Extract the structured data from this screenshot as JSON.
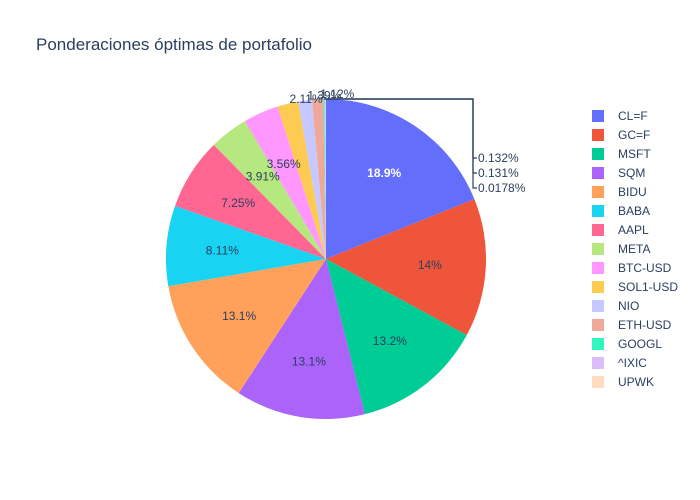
{
  "chart_data": {
    "type": "pie",
    "title": "Ponderaciones óptimas de portafolio",
    "direction": "clockwise",
    "start_angle_deg": 90,
    "legend_position": "right",
    "slices": [
      {
        "label": "CL=F",
        "value": 18.9,
        "text": "18.9%",
        "color": "#636efa"
      },
      {
        "label": "GC=F",
        "value": 14.0,
        "text": "14%",
        "color": "#EF553B"
      },
      {
        "label": "MSFT",
        "value": 13.2,
        "text": "13.2%",
        "color": "#00cc96"
      },
      {
        "label": "SQM",
        "value": 13.1,
        "text": "13.1%",
        "color": "#ab63fa"
      },
      {
        "label": "BIDU",
        "value": 13.1,
        "text": "13.1%",
        "color": "#FFA15A"
      },
      {
        "label": "BABA",
        "value": 8.11,
        "text": "8.11%",
        "color": "#19d3f3"
      },
      {
        "label": "AAPL",
        "value": 7.25,
        "text": "7.25%",
        "color": "#FF6692"
      },
      {
        "label": "META",
        "value": 3.91,
        "text": "3.91%",
        "color": "#B6E880"
      },
      {
        "label": "BTC-USD",
        "value": 3.56,
        "text": "3.56%",
        "color": "#FF97FF"
      },
      {
        "label": "SOL1-USD",
        "value": 2.11,
        "text": "2.11%",
        "color": "#FECB52"
      },
      {
        "label": "NIO",
        "value": 1.39,
        "text": "1.39%",
        "color": "#c6c9ff"
      },
      {
        "label": "ETH-USD",
        "value": 1.12,
        "text": "1.12%",
        "color": "#f0a89a"
      },
      {
        "label": "GOOGL",
        "value": 0.132,
        "text": "0.132%",
        "color": "#33f5c0"
      },
      {
        "label": "^IXIC",
        "value": 0.131,
        "text": "0.131%",
        "color": "#dbbdfc"
      },
      {
        "label": "UPWK",
        "value": 0.0178,
        "text": "0.0178%",
        "color": "#ffdcc0"
      }
    ]
  }
}
